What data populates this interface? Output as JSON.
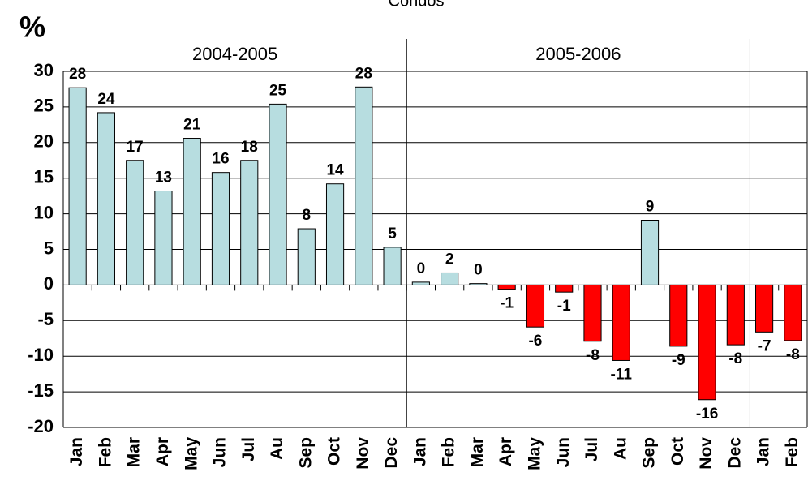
{
  "chart_data": {
    "type": "bar",
    "title": "Condos",
    "y_label": "%",
    "categories": [
      "Jan",
      "Feb",
      "Mar",
      "Apr",
      "May",
      "Jun",
      "Jul",
      "Au",
      "Sep",
      "Oct",
      "Nov",
      "Dec",
      "Jan",
      "Feb",
      "Mar",
      "Apr",
      "May",
      "Jun",
      "Jul",
      "Au",
      "Sep",
      "Oct",
      "Nov",
      "Dec",
      "Jan",
      "Feb"
    ],
    "values": [
      27.7,
      24.2,
      17.5,
      13.2,
      20.6,
      15.8,
      17.5,
      25.4,
      7.9,
      14.2,
      27.8,
      5.3,
      0.4,
      1.7,
      0.2,
      -0.6,
      -5.9,
      -1.0,
      -7.9,
      -10.6,
      9.1,
      -8.6,
      -16.1,
      -8.4,
      -6.6,
      -7.8
    ],
    "value_labels": [
      "28",
      "24",
      "17",
      "13",
      "21",
      "16",
      "18",
      "25",
      "8",
      "14",
      "28",
      "5",
      "0",
      "2",
      "0",
      "-1",
      "-6",
      "-1",
      "-8",
      "-11",
      "9",
      "-9",
      "-16",
      "-8",
      "-7",
      "-8"
    ],
    "color_positive": "#b7dde0",
    "color_negative": "#ff0000",
    "periods": [
      {
        "label": "2004-2005",
        "count": 12
      },
      {
        "label": "2005-2006",
        "count": 12
      },
      {
        "label": null,
        "count": 2
      }
    ],
    "ylim": [
      -20,
      30
    ],
    "yticks": [
      -20,
      -15,
      -10,
      -5,
      0,
      5,
      10,
      15,
      20,
      25,
      30
    ],
    "grid": true
  }
}
